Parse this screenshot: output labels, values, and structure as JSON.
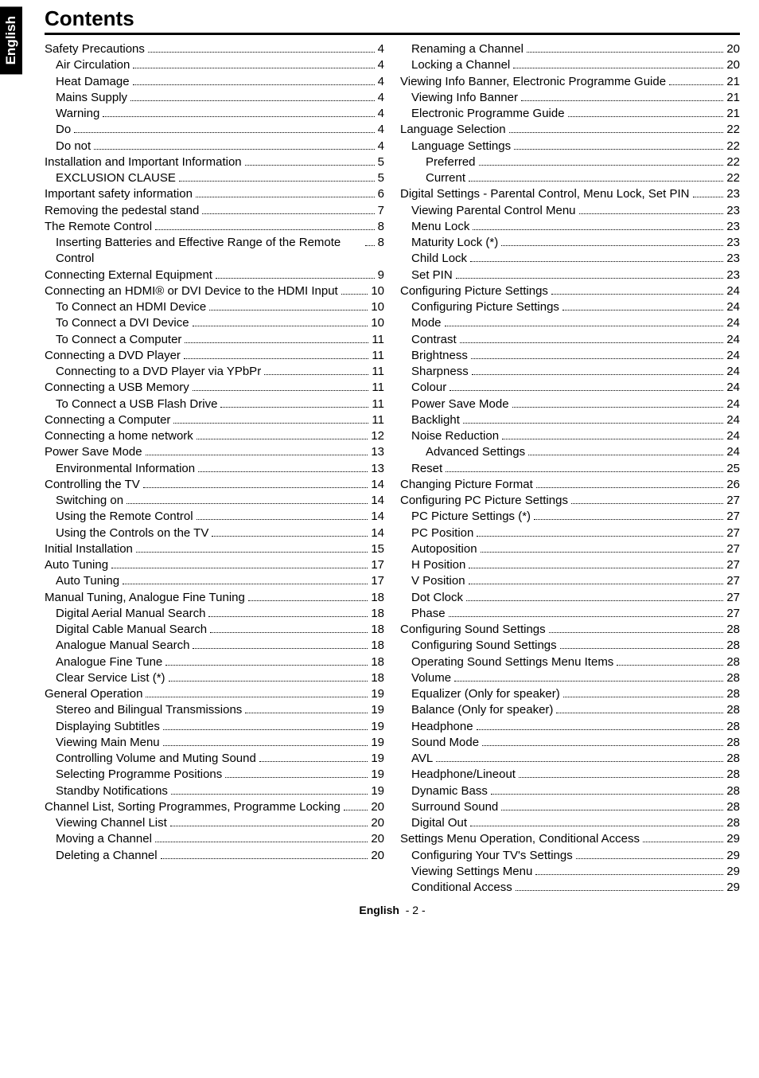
{
  "side_label": "English",
  "heading": "Contents",
  "footer_prefix": "English",
  "footer_page": "- 2 -",
  "toc_left": [
    {
      "level": 0,
      "label": "Safety Precautions",
      "page": "4"
    },
    {
      "level": 1,
      "label": "Air Circulation",
      "page": "4"
    },
    {
      "level": 1,
      "label": "Heat Damage",
      "page": "4"
    },
    {
      "level": 1,
      "label": "Mains Supply",
      "page": "4"
    },
    {
      "level": 1,
      "label": "Warning",
      "page": "4"
    },
    {
      "level": 1,
      "label": "Do",
      "page": "4"
    },
    {
      "level": 1,
      "label": "Do not",
      "page": "4"
    },
    {
      "level": 0,
      "label": "Installation and Important Information",
      "page": "5"
    },
    {
      "level": 1,
      "label": "EXCLUSION CLAUSE",
      "page": "5"
    },
    {
      "level": 0,
      "label": "Important safety information",
      "page": "6"
    },
    {
      "level": 0,
      "label": "Removing the pedestal stand",
      "page": "7"
    },
    {
      "level": 0,
      "label": "The Remote Control",
      "page": "8"
    },
    {
      "level": 1,
      "label": "Inserting Batteries and Effective Range of the Remote Control",
      "page": "8"
    },
    {
      "level": 0,
      "label": "Connecting External Equipment",
      "page": "9"
    },
    {
      "level": 0,
      "label": "Connecting an HDMI® or DVI Device to the HDMI Input",
      "page": "10"
    },
    {
      "level": 1,
      "label": "To Connect an HDMI Device",
      "page": "10"
    },
    {
      "level": 1,
      "label": "To Connect a DVI Device",
      "page": "10"
    },
    {
      "level": 1,
      "label": "To Connect a Computer",
      "page": "11"
    },
    {
      "level": 0,
      "label": "Connecting a DVD Player",
      "page": "11"
    },
    {
      "level": 1,
      "label": "Connecting to a DVD Player via YPbPr",
      "page": "11"
    },
    {
      "level": 0,
      "label": "Connecting a USB Memory",
      "page": "11"
    },
    {
      "level": 1,
      "label": "To Connect a USB Flash Drive",
      "page": "11"
    },
    {
      "level": 0,
      "label": "Connecting a Computer",
      "page": "11"
    },
    {
      "level": 0,
      "label": "Connecting a home network",
      "page": "12"
    },
    {
      "level": 0,
      "label": "Power Save Mode",
      "page": "13"
    },
    {
      "level": 1,
      "label": "Environmental Information",
      "page": "13"
    },
    {
      "level": 0,
      "label": "Controlling the TV",
      "page": "14"
    },
    {
      "level": 1,
      "label": "Switching on",
      "page": "14"
    },
    {
      "level": 1,
      "label": "Using the Remote Control",
      "page": "14"
    },
    {
      "level": 1,
      "label": "Using the Controls on the TV",
      "page": "14"
    },
    {
      "level": 0,
      "label": "Initial Installation",
      "page": "15"
    },
    {
      "level": 0,
      "label": "Auto Tuning",
      "page": "17"
    },
    {
      "level": 1,
      "label": "Auto Tuning",
      "page": "17"
    },
    {
      "level": 0,
      "label": "Manual Tuning, Analogue Fine Tuning",
      "page": "18"
    },
    {
      "level": 1,
      "label": "Digital Aerial Manual Search",
      "page": "18"
    },
    {
      "level": 1,
      "label": "Digital Cable Manual Search",
      "page": "18"
    },
    {
      "level": 1,
      "label": "Analogue Manual Search",
      "page": "18"
    },
    {
      "level": 1,
      "label": "Analogue Fine Tune",
      "page": "18"
    },
    {
      "level": 1,
      "label": "Clear Service List (*)",
      "page": "18"
    },
    {
      "level": 0,
      "label": "General Operation",
      "page": "19"
    },
    {
      "level": 1,
      "label": "Stereo and Bilingual Transmissions",
      "page": "19"
    },
    {
      "level": 1,
      "label": "Displaying Subtitles",
      "page": "19"
    },
    {
      "level": 1,
      "label": "Viewing Main Menu",
      "page": "19"
    },
    {
      "level": 1,
      "label": "Controlling Volume and Muting Sound",
      "page": "19"
    },
    {
      "level": 1,
      "label": "Selecting Programme Positions",
      "page": "19"
    },
    {
      "level": 1,
      "label": "Standby Notifications",
      "page": "19"
    },
    {
      "level": 0,
      "label": "Channel List, Sorting Programmes, Programme Locking",
      "page": "20"
    },
    {
      "level": 1,
      "label": "Viewing Channel List",
      "page": "20"
    },
    {
      "level": 1,
      "label": "Moving a Channel",
      "page": "20"
    },
    {
      "level": 1,
      "label": "Deleting a Channel",
      "page": "20"
    }
  ],
  "toc_right": [
    {
      "level": 1,
      "label": "Renaming a Channel",
      "page": "20"
    },
    {
      "level": 1,
      "label": "Locking a Channel",
      "page": "20"
    },
    {
      "level": 0,
      "label": "Viewing Info Banner, Electronic Programme Guide",
      "page": "21"
    },
    {
      "level": 1,
      "label": "Viewing Info Banner",
      "page": "21"
    },
    {
      "level": 1,
      "label": "Electronic Programme Guide",
      "page": "21"
    },
    {
      "level": 0,
      "label": "Language Selection",
      "page": "22"
    },
    {
      "level": 1,
      "label": "Language Settings",
      "page": "22"
    },
    {
      "level": 2,
      "label": "Preferred",
      "page": "22"
    },
    {
      "level": 2,
      "label": "Current",
      "page": "22"
    },
    {
      "level": 0,
      "label": "Digital Settings - Parental Control, Menu Lock, Set PIN",
      "page": "23"
    },
    {
      "level": 1,
      "label": "Viewing Parental Control Menu",
      "page": "23"
    },
    {
      "level": 1,
      "label": "Menu Lock",
      "page": "23"
    },
    {
      "level": 1,
      "label": "Maturity Lock (*)",
      "page": "23"
    },
    {
      "level": 1,
      "label": "Child Lock",
      "page": "23"
    },
    {
      "level": 1,
      "label": "Set PIN",
      "page": "23"
    },
    {
      "level": 0,
      "label": "Configuring Picture Settings",
      "page": "24"
    },
    {
      "level": 1,
      "label": "Configuring Picture Settings",
      "page": "24"
    },
    {
      "level": 1,
      "label": "Mode",
      "page": "24"
    },
    {
      "level": 1,
      "label": "Contrast",
      "page": "24"
    },
    {
      "level": 1,
      "label": "Brightness",
      "page": "24"
    },
    {
      "level": 1,
      "label": "Sharpness",
      "page": "24"
    },
    {
      "level": 1,
      "label": "Colour",
      "page": "24"
    },
    {
      "level": 1,
      "label": "Power Save Mode",
      "page": "24"
    },
    {
      "level": 1,
      "label": "Backlight",
      "page": "24"
    },
    {
      "level": 1,
      "label": "Noise Reduction",
      "page": "24"
    },
    {
      "level": 2,
      "label": "Advanced Settings",
      "page": "24"
    },
    {
      "level": 1,
      "label": "Reset",
      "page": "25"
    },
    {
      "level": 0,
      "label": "Changing Picture Format",
      "page": "26"
    },
    {
      "level": 0,
      "label": "Configuring PC Picture Settings",
      "page": "27"
    },
    {
      "level": 1,
      "label": "PC Picture Settings (*)",
      "page": "27"
    },
    {
      "level": 1,
      "label": "PC Position",
      "page": "27"
    },
    {
      "level": 1,
      "label": "Autoposition",
      "page": "27"
    },
    {
      "level": 1,
      "label": "H Position",
      "page": "27"
    },
    {
      "level": 1,
      "label": "V Position",
      "page": "27"
    },
    {
      "level": 1,
      "label": "Dot Clock",
      "page": "27"
    },
    {
      "level": 1,
      "label": "Phase",
      "page": "27"
    },
    {
      "level": 0,
      "label": "Configuring Sound Settings",
      "page": "28"
    },
    {
      "level": 1,
      "label": "Configuring Sound Settings",
      "page": "28"
    },
    {
      "level": 1,
      "label": "Operating Sound Settings Menu Items",
      "page": "28"
    },
    {
      "level": 1,
      "label": "Volume",
      "page": "28"
    },
    {
      "level": 1,
      "label": "Equalizer (Only for speaker)",
      "page": "28"
    },
    {
      "level": 1,
      "label": "Balance (Only for speaker)",
      "page": "28"
    },
    {
      "level": 1,
      "label": "Headphone",
      "page": "28"
    },
    {
      "level": 1,
      "label": "Sound Mode",
      "page": "28"
    },
    {
      "level": 1,
      "label": "AVL",
      "page": "28"
    },
    {
      "level": 1,
      "label": "Headphone/Lineout",
      "page": "28"
    },
    {
      "level": 1,
      "label": "Dynamic Bass",
      "page": "28"
    },
    {
      "level": 1,
      "label": "Surround Sound",
      "page": "28"
    },
    {
      "level": 1,
      "label": "Digital Out",
      "page": "28"
    },
    {
      "level": 0,
      "label": "Settings Menu Operation, Conditional Access",
      "page": "29"
    },
    {
      "level": 1,
      "label": "Configuring Your TV's Settings",
      "page": "29"
    },
    {
      "level": 1,
      "label": "Viewing Settings Menu",
      "page": "29"
    },
    {
      "level": 1,
      "label": "Conditional Access",
      "page": "29"
    }
  ]
}
